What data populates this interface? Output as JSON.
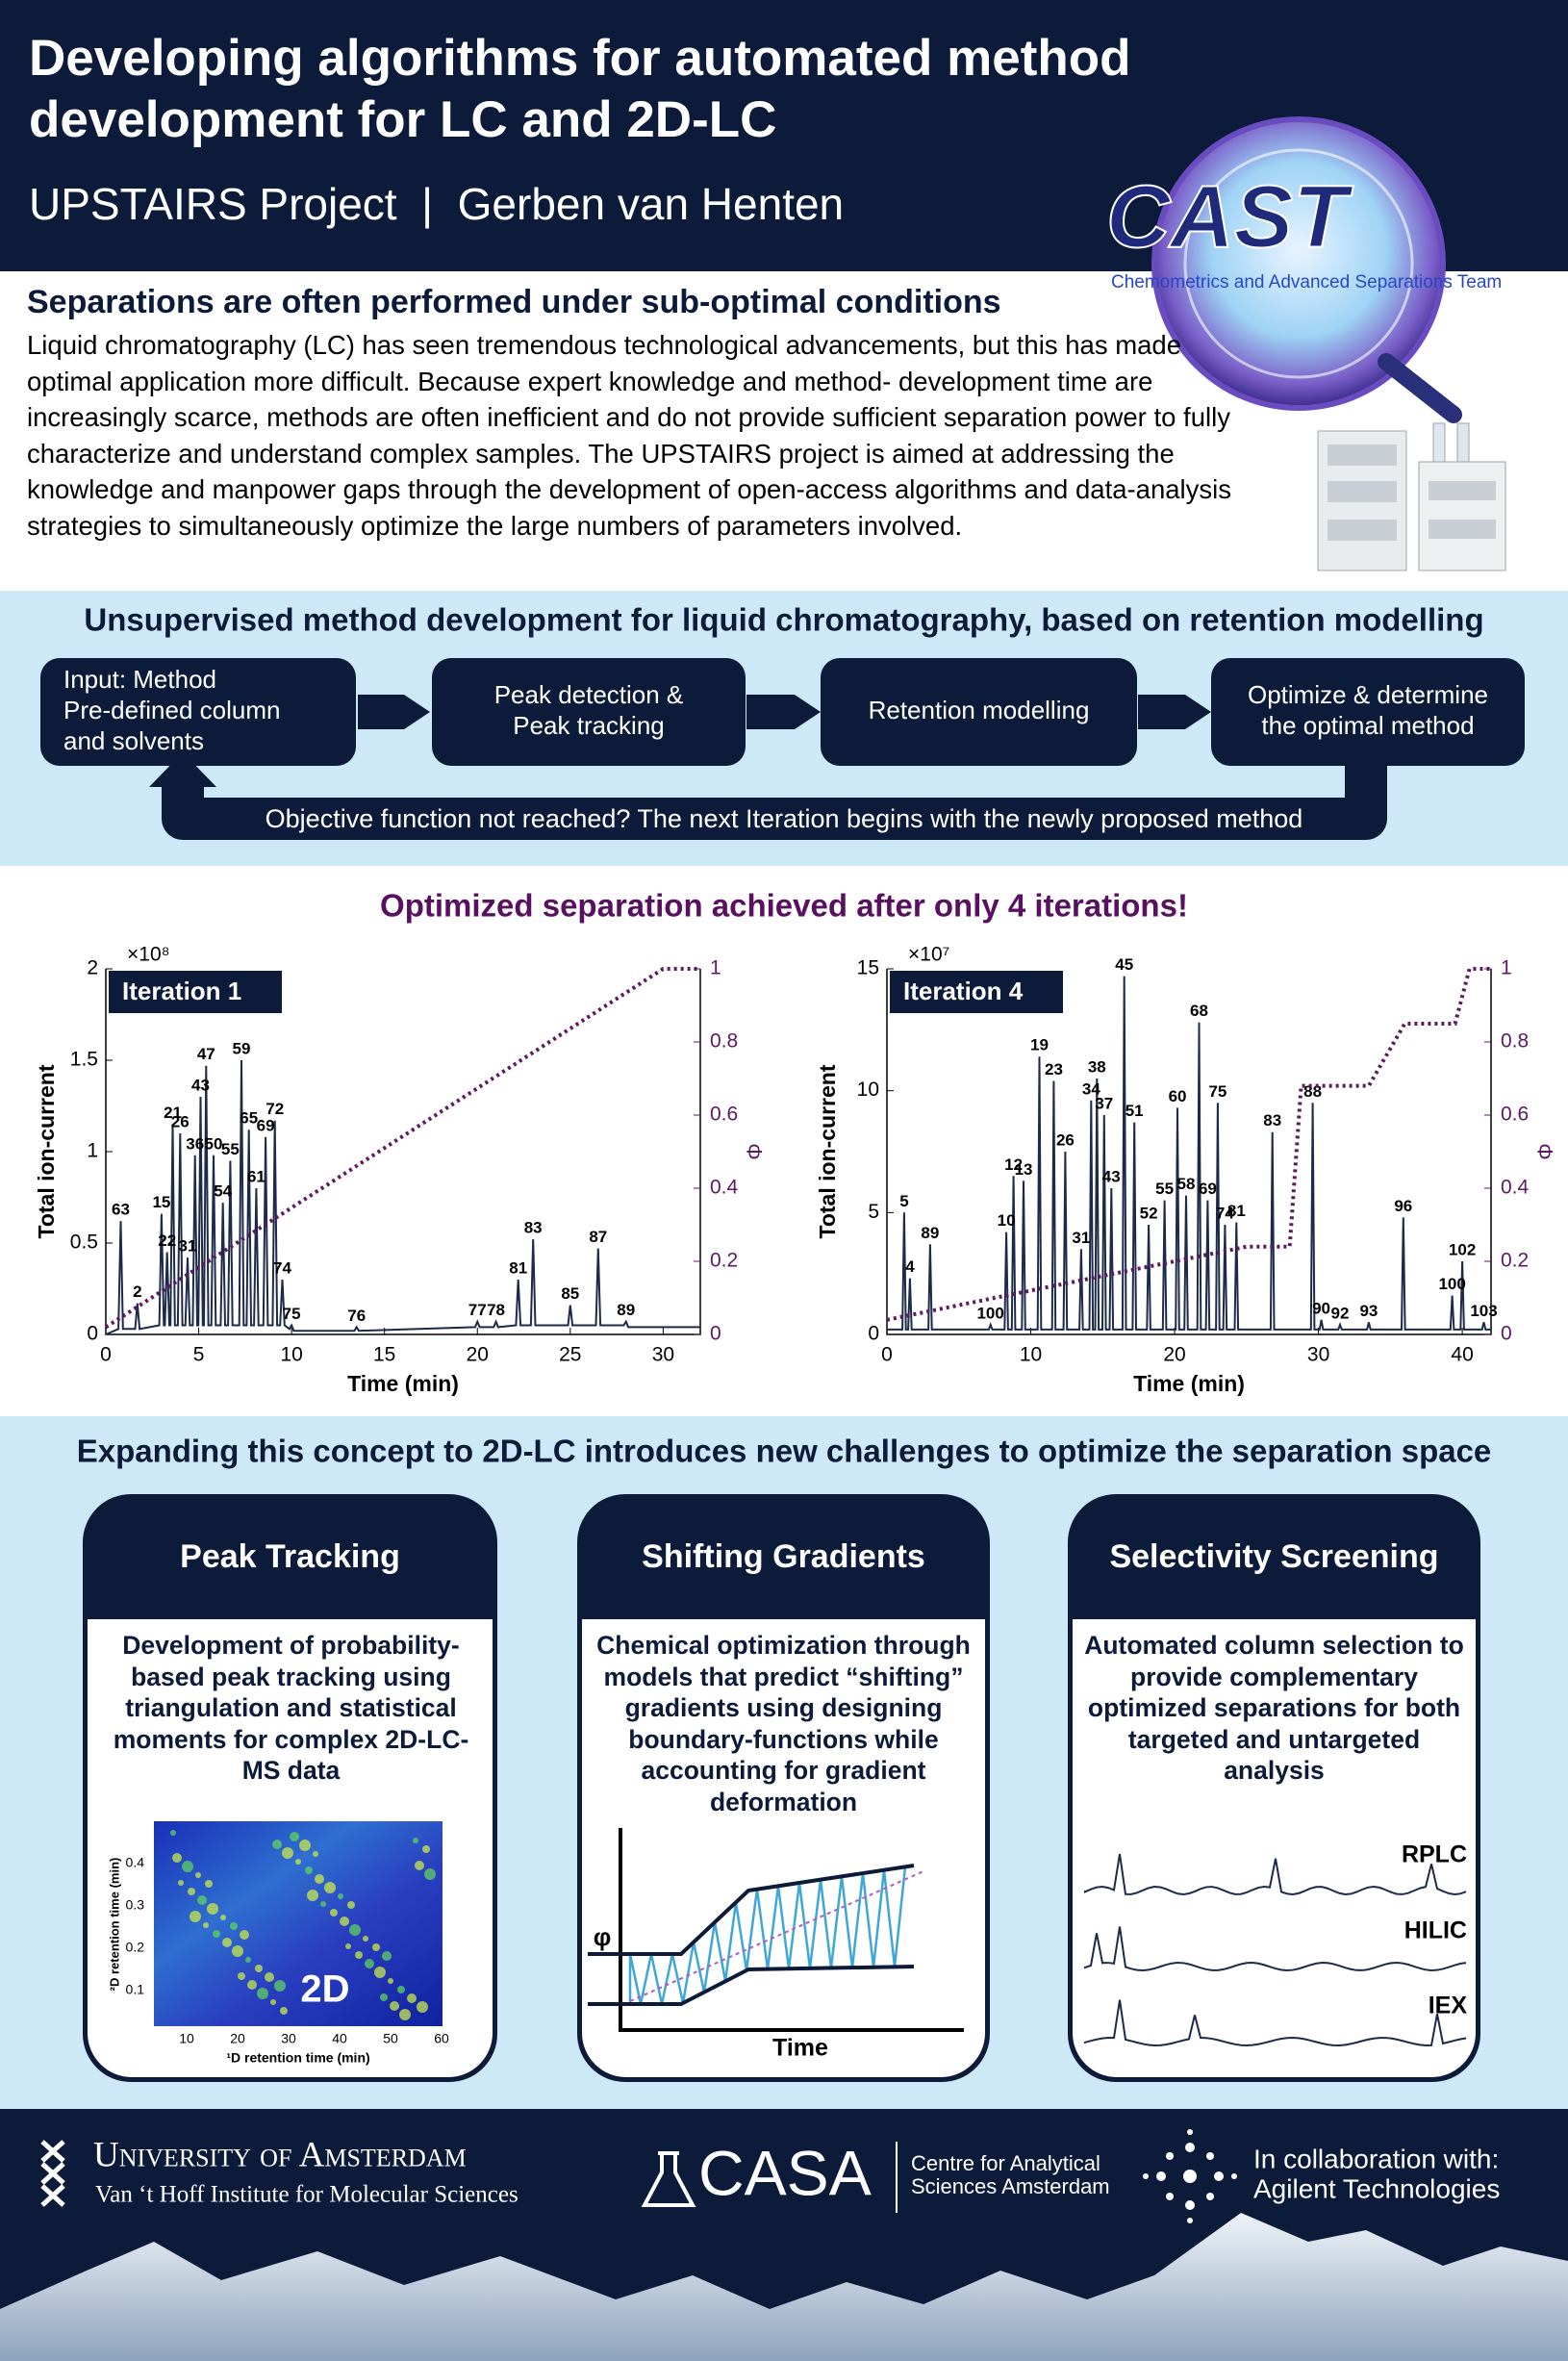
{
  "header": {
    "title_lines": [
      "Developing algorithms for automated method",
      "development for LC and 2D-LC"
    ],
    "subtitle": "UPSTAIRS Project  |  Gerben van Henten"
  },
  "logo": {
    "name": "CAST",
    "tagline": "Chemometrics and Advanced Separations Team"
  },
  "intro": {
    "heading": "Separations are often performed under sub-optimal conditions",
    "body": "Liquid chromatography (LC) has seen tremendous technological advancements, but this has made optimal application more difficult. Because expert knowledge and method- development time are increasingly scarce, methods are often inefficient and do not provide sufficient separation power to fully characterize and understand complex samples. The UPSTAIRS project is aimed at addressing the knowledge and manpower gaps through the development of open-access algorithms and data-analysis strategies to simultaneously optimize the large numbers of parameters involved."
  },
  "workflow": {
    "heading": "Unsupervised method development for liquid chromatography, based on retention modelling",
    "steps": [
      [
        "Input: Method",
        "Pre-defined column",
        "and solvents"
      ],
      [
        "Peak detection &",
        "Peak tracking"
      ],
      [
        "Retention modelling"
      ],
      [
        "Optimize & determine",
        "the optimal method"
      ]
    ],
    "loop": "Objective function not reached? The next Iteration begins with the newly proposed method"
  },
  "results": {
    "heading": "Optimized separation achieved after only 4 iterations!"
  },
  "chart_data": [
    {
      "type": "line",
      "title": "Iteration 1",
      "x_label": "Time (min)",
      "y_label": "Total ion-current",
      "y2_label": "Φ",
      "y_multiplier": "×10⁸",
      "xlim": [
        0,
        32
      ],
      "xticks": [
        0,
        5,
        10,
        15,
        20,
        25,
        30
      ],
      "ylim": [
        0,
        2
      ],
      "yticks": [
        0,
        0.5,
        1,
        1.5,
        2
      ],
      "y2lim": [
        0,
        1
      ],
      "y2ticks": [
        0,
        0.2,
        0.4,
        0.6,
        0.8,
        1
      ],
      "series": [
        {
          "color": "#1c2b4a",
          "style": "solid",
          "x": [
            0,
            0.68,
            0.8,
            0.92,
            1.58,
            1.7,
            1.82,
            2.88,
            3.0,
            3.12,
            3.18,
            3.3,
            3.42,
            3.48,
            3.6,
            3.72,
            3.88,
            4.0,
            4.12,
            4.28,
            4.4,
            4.52,
            4.68,
            4.8,
            4.92,
            4.98,
            5.1,
            5.22,
            5.28,
            5.4,
            5.52,
            5.68,
            5.8,
            5.92,
            6.18,
            6.3,
            6.42,
            6.58,
            6.7,
            6.82,
            7.18,
            7.3,
            7.42,
            7.58,
            7.7,
            7.82,
            7.98,
            8.1,
            8.22,
            8.48,
            8.6,
            8.72,
            8.98,
            9.1,
            9.22,
            9.38,
            9.5,
            9.62,
            9.88,
            10,
            10.12,
            13.38,
            13.5,
            13.62,
            19.88,
            20,
            20.12,
            20.88,
            21,
            21.12,
            22.08,
            22.2,
            22.32,
            22.88,
            23,
            23.12,
            24.88,
            25,
            25.12,
            26.38,
            26.5,
            26.62,
            27.88,
            28,
            28.12,
            32
          ],
          "values": [
            0,
            0.03,
            0.62,
            0.03,
            0.03,
            0.17,
            0.03,
            0.05,
            0.66,
            0.05,
            0.05,
            0.45,
            0.05,
            0.05,
            1.15,
            0.05,
            0.05,
            1.1,
            0.05,
            0.05,
            0.42,
            0.05,
            0.05,
            0.98,
            0.05,
            0.05,
            1.3,
            0.05,
            0.05,
            1.47,
            0.05,
            0.05,
            0.98,
            0.05,
            0.05,
            0.72,
            0.05,
            0.05,
            0.95,
            0.05,
            0.05,
            1.5,
            0.05,
            0.05,
            1.12,
            0.05,
            0.05,
            0.8,
            0.05,
            0.05,
            1.08,
            0.05,
            0.05,
            1.17,
            0.05,
            0.05,
            0.3,
            0.05,
            0.03,
            0.05,
            0.02,
            0.02,
            0.04,
            0.02,
            0.04,
            0.07,
            0.04,
            0.04,
            0.07,
            0.04,
            0.05,
            0.3,
            0.05,
            0.05,
            0.52,
            0.05,
            0.05,
            0.16,
            0.05,
            0.05,
            0.47,
            0.05,
            0.05,
            0.07,
            0.04,
            0.04
          ],
          "point_labels": [
            null,
            null,
            "63",
            null,
            null,
            "2",
            null,
            null,
            "15",
            null,
            null,
            "22",
            null,
            null,
            "21",
            null,
            null,
            "26",
            null,
            null,
            "31",
            null,
            null,
            "36",
            null,
            null,
            "43",
            null,
            null,
            "47",
            null,
            null,
            "50",
            null,
            null,
            "54",
            null,
            null,
            "55",
            null,
            null,
            "59",
            null,
            null,
            "65",
            null,
            null,
            "61",
            null,
            null,
            "69",
            null,
            null,
            "72",
            null,
            null,
            "74",
            null,
            null,
            "75",
            null,
            null,
            "76",
            null,
            null,
            "77",
            null,
            null,
            "78",
            null,
            null,
            "81",
            null,
            null,
            "83",
            null,
            null,
            "85",
            null,
            null,
            "87",
            null,
            null,
            "89",
            null,
            null
          ]
        },
        {
          "color": "#5c1a5f",
          "style": "dotted",
          "axis": "y2",
          "x": [
            0,
            30,
            32
          ],
          "values": [
            0.02,
            1,
            1
          ]
        }
      ]
    },
    {
      "type": "line",
      "title": "Iteration 4",
      "x_label": "Time (min)",
      "y_label": "Total ion-current",
      "y2_label": "Φ",
      "y_multiplier": "×10⁷",
      "xlim": [
        0,
        42
      ],
      "xticks": [
        0,
        10,
        20,
        30,
        40
      ],
      "ylim": [
        0,
        15
      ],
      "yticks": [
        0,
        5,
        10,
        15
      ],
      "y2lim": [
        0,
        1
      ],
      "y2ticks": [
        0,
        0.2,
        0.4,
        0.6,
        0.8,
        1
      ],
      "series": [
        {
          "color": "#1c2b4a",
          "style": "solid",
          "x": [
            0,
            1.08,
            1.2,
            1.32,
            1.48,
            1.6,
            1.72,
            2.88,
            3.0,
            3.12,
            7.08,
            7.2,
            7.32,
            8.18,
            8.3,
            8.42,
            8.68,
            8.8,
            8.92,
            9.38,
            9.5,
            9.62,
            10.48,
            10.6,
            10.72,
            11.48,
            11.6,
            11.72,
            12.28,
            12.4,
            12.52,
            13.38,
            13.5,
            13.62,
            14.08,
            14.2,
            14.32,
            14.48,
            14.6,
            14.72,
            14.98,
            15.1,
            15.22,
            15.48,
            15.6,
            15.72,
            16.38,
            16.5,
            16.62,
            17.08,
            17.2,
            17.32,
            18.08,
            18.2,
            18.32,
            19.18,
            19.3,
            19.42,
            20.08,
            20.2,
            20.32,
            20.68,
            20.8,
            20.92,
            21.58,
            21.7,
            21.82,
            22.18,
            22.3,
            22.42,
            22.88,
            23.0,
            23.12,
            23.38,
            23.5,
            23.62,
            24.18,
            24.3,
            24.42,
            26.68,
            26.8,
            26.92,
            29.48,
            29.6,
            29.72,
            30.08,
            30.2,
            30.32,
            31.38,
            31.5,
            31.62,
            33.38,
            33.5,
            33.62,
            35.78,
            35.9,
            36.02,
            39.18,
            39.3,
            39.42,
            39.88,
            40.0,
            40.12,
            41.38,
            41.5,
            41.62,
            42
          ],
          "values": [
            0.2,
            0.2,
            5,
            0.2,
            0.2,
            2.3,
            0.2,
            0.2,
            3.7,
            0.2,
            0.2,
            0.4,
            0.2,
            0.2,
            4.2,
            0.2,
            0.2,
            6.5,
            0.2,
            0.2,
            6.3,
            0.2,
            0.2,
            11.4,
            0.2,
            0.2,
            10.4,
            0.2,
            0.2,
            7.5,
            0.2,
            0.2,
            3.5,
            0.2,
            0.2,
            9.6,
            0.2,
            0.2,
            10.5,
            0.2,
            0.2,
            9,
            0.2,
            0.2,
            6,
            0.2,
            0.2,
            14.7,
            0.2,
            0.2,
            8.7,
            0.2,
            0.2,
            4.5,
            0.2,
            0.2,
            5.5,
            0.2,
            0.2,
            9.3,
            0.2,
            0.2,
            5.7,
            0.2,
            0.2,
            12.8,
            0.2,
            0.2,
            5.5,
            0.2,
            0.2,
            9.5,
            0.2,
            0.2,
            4.5,
            0.2,
            0.2,
            4.6,
            0.2,
            0.2,
            8.3,
            0.2,
            0.2,
            9.5,
            0.2,
            0.2,
            0.6,
            0.2,
            0.2,
            0.4,
            0.2,
            0.2,
            0.5,
            0.2,
            0.2,
            4.8,
            0.2,
            0.2,
            1.6,
            0.2,
            0.2,
            3,
            0.2,
            0.2,
            0.5,
            0.2,
            0.2
          ],
          "point_labels": [
            null,
            null,
            "5",
            null,
            null,
            "4",
            null,
            null,
            "89",
            null,
            null,
            "100",
            null,
            null,
            "10",
            null,
            null,
            "12",
            null,
            null,
            "13",
            null,
            null,
            "19",
            null,
            null,
            "23",
            null,
            null,
            "26",
            null,
            null,
            "31",
            null,
            null,
            "34",
            null,
            null,
            "38",
            null,
            null,
            "37",
            null,
            null,
            "43",
            null,
            null,
            "45",
            null,
            null,
            "51",
            null,
            null,
            "52",
            null,
            null,
            "55",
            null,
            null,
            "60",
            null,
            null,
            "58",
            null,
            null,
            "68",
            null,
            null,
            "69",
            null,
            null,
            "75",
            null,
            null,
            "74",
            null,
            null,
            "81",
            null,
            null,
            "83",
            null,
            null,
            "88",
            null,
            null,
            "90",
            null,
            null,
            "92",
            null,
            null,
            "93",
            null,
            null,
            "96",
            null,
            null,
            "100",
            null,
            null,
            "102",
            null,
            null,
            "103",
            null,
            null
          ]
        },
        {
          "color": "#5c1a5f",
          "style": "dotted",
          "axis": "y2",
          "x": [
            0,
            25,
            28,
            28.8,
            33.5,
            36,
            39.5,
            40.5,
            42
          ],
          "values": [
            0.04,
            0.24,
            0.24,
            0.68,
            0.68,
            0.85,
            0.85,
            1,
            1
          ]
        }
      ]
    }
  ],
  "expand": {
    "heading": "Expanding this concept to 2D-LC introduces new challenges to optimize the separation space",
    "cards": [
      {
        "title": "Peak Tracking",
        "body": "Development of probability-based peak tracking using triangulation and statistical moments for complex 2D-LC-MS data"
      },
      {
        "title": "Shifting Gradients",
        "body": "Chemical optimization through models that predict “shifting” gradients using designing boundary-functions while accounting for gradient deformation"
      },
      {
        "title": "Selectivity Screening",
        "body": "Automated column selection to provide complementary optimized separations for both targeted and untargeted analysis"
      }
    ],
    "peak_tracking_inset": {
      "label": "2D",
      "y_label": "²D retention time (min)",
      "x_label": "¹D retention time (min)",
      "yticks": [
        "0.1",
        "0.2",
        "0.3",
        "0.4"
      ],
      "xticks": [
        "10",
        "20",
        "30",
        "40",
        "50",
        "60"
      ]
    },
    "gradient_inset": {
      "y_label": "φ",
      "x_label": "Time"
    },
    "selectivity_inset": {
      "labels": [
        "RPLC",
        "HILIC",
        "IEX"
      ]
    }
  },
  "footer": {
    "university": "University of Amsterdam",
    "institute": "Van ‘t Hoff Institute for Molecular Sciences",
    "casa": "CASA",
    "casa_lines": [
      "Centre for Analytical",
      "Sciences Amsterdam"
    ],
    "collab_lines": [
      "In collaboration with:",
      "Agilent Technologies"
    ]
  }
}
